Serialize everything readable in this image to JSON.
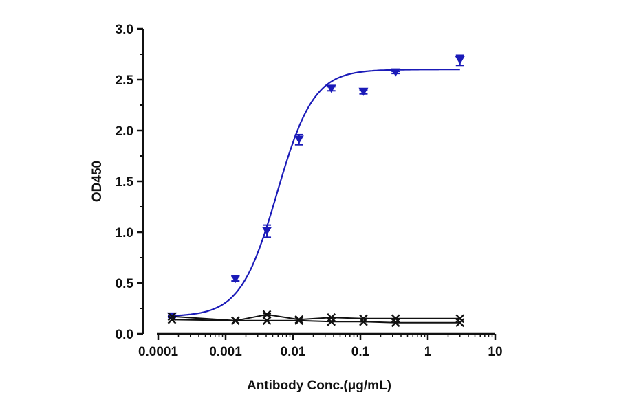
{
  "chart_data": {
    "type": "scatter",
    "title": "",
    "xlabel": "Antibody Conc.(μg/mL)",
    "ylabel": "OD450",
    "x_scale": "log",
    "xlim": [
      0.0001,
      10
    ],
    "ylim": [
      0,
      3.0
    ],
    "x_ticks": [
      "0.0001",
      "0.001",
      "0.01",
      "0.1",
      "1",
      "10"
    ],
    "y_ticks": [
      "0.0",
      "0.5",
      "1.0",
      "1.5",
      "2.0",
      "2.5",
      "3.0"
    ],
    "grid": false,
    "legend": "none",
    "series": [
      {
        "marker": "triangle-down",
        "color": "#1a1ab8",
        "x": [
          0.00016,
          0.0014,
          0.0041,
          0.0123,
          0.037,
          0.111,
          0.333,
          3.0
        ],
        "y": [
          0.17,
          0.54,
          1.01,
          1.91,
          2.41,
          2.38,
          2.57,
          2.69
        ],
        "error": [
          0.01,
          0.02,
          0.06,
          0.05,
          0.02,
          0.02,
          0.01,
          0.05
        ],
        "fit": {
          "bottom": 0.17,
          "top": 2.6,
          "ec50": 0.0058,
          "hill": 1.6
        }
      },
      {
        "marker": "x",
        "color": "#111111",
        "x": [
          0.00016,
          0.0014,
          0.0041,
          0.0123,
          0.037,
          0.111,
          0.333,
          3.0
        ],
        "y": [
          0.17,
          0.13,
          0.19,
          0.14,
          0.16,
          0.15,
          0.15,
          0.15
        ],
        "error": [
          0.0,
          0.0,
          0.01,
          0.0,
          0.0,
          0.0,
          0.0,
          0.0
        ]
      },
      {
        "marker": "x",
        "color": "#111111",
        "x": [
          0.00016,
          0.0014,
          0.0041,
          0.0123,
          0.037,
          0.111,
          0.333,
          3.0
        ],
        "y": [
          0.14,
          0.13,
          0.13,
          0.13,
          0.12,
          0.12,
          0.11,
          0.11
        ]
      }
    ]
  }
}
